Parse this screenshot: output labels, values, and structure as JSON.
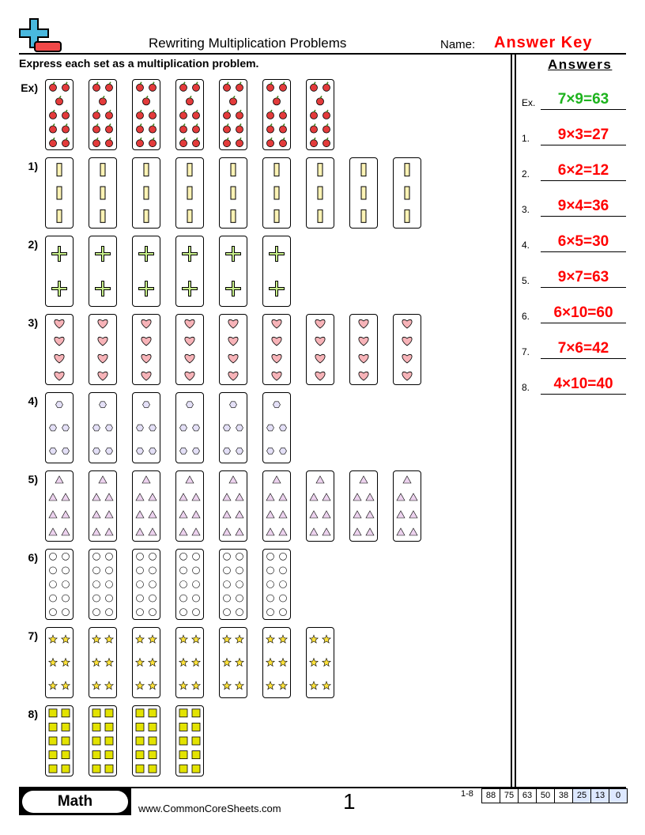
{
  "header": {
    "title": "Rewriting Multiplication Problems",
    "name_label": "Name:",
    "name_value": "Answer Key",
    "logo": "plus-minus-logo-icon"
  },
  "instructions": "Express each set as a multiplication problem.",
  "colors": {
    "answer": "#ff0000",
    "example_answer": "#1db31d"
  },
  "problems": [
    {
      "label": "Ex)",
      "groups": 7,
      "item": "apple",
      "rows": [
        2,
        1,
        2,
        2,
        2
      ],
      "color": "#e33b3b"
    },
    {
      "label": "1)",
      "groups": 9,
      "item": "bar",
      "rows": [
        1,
        1,
        1
      ],
      "color": "#fdf3b5"
    },
    {
      "label": "2)",
      "groups": 6,
      "item": "plus",
      "rows": [
        1,
        1
      ],
      "color": "#c8f08a"
    },
    {
      "label": "3)",
      "groups": 9,
      "item": "heart",
      "rows": [
        1,
        1,
        1,
        1
      ],
      "color": "#f7b3b8"
    },
    {
      "label": "4)",
      "groups": 6,
      "item": "hexagon",
      "rows": [
        1,
        2,
        2
      ],
      "color": "#e4e0f7"
    },
    {
      "label": "5)",
      "groups": 9,
      "item": "triangle",
      "rows": [
        1,
        2,
        2,
        2
      ],
      "color": "#ecd2ee"
    },
    {
      "label": "6)",
      "groups": 6,
      "item": "circle",
      "rows": [
        2,
        2,
        2,
        2,
        2
      ],
      "color": "#ffffff"
    },
    {
      "label": "7)",
      "groups": 7,
      "item": "star",
      "rows": [
        2,
        2,
        2
      ],
      "color": "#ffe23a"
    },
    {
      "label": "8)",
      "groups": 4,
      "item": "square",
      "rows": [
        2,
        2,
        2,
        2,
        2
      ],
      "color": "#e3e300"
    }
  ],
  "answers": {
    "title": "Answers",
    "items": [
      {
        "num": "Ex.",
        "text": "7×9=63"
      },
      {
        "num": "1.",
        "text": "9×3=27"
      },
      {
        "num": "2.",
        "text": "6×2=12"
      },
      {
        "num": "3.",
        "text": "9×4=36"
      },
      {
        "num": "4.",
        "text": "6×5=30"
      },
      {
        "num": "5.",
        "text": "9×7=63"
      },
      {
        "num": "6.",
        "text": "6×10=60"
      },
      {
        "num": "7.",
        "text": "7×6=42"
      },
      {
        "num": "8.",
        "text": "4×10=40"
      }
    ]
  },
  "footer": {
    "subject": "Math",
    "site": "www.CommonCoreSheets.com",
    "page": "1",
    "range": "1-8",
    "scores": [
      "88",
      "75",
      "63",
      "50",
      "38",
      "25",
      "13",
      "0"
    ]
  }
}
